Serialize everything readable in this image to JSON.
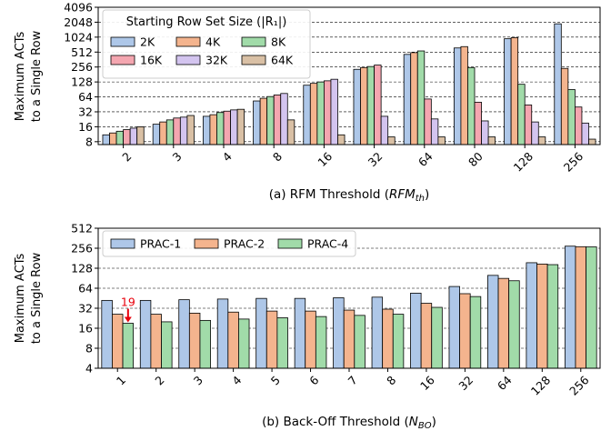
{
  "chart_data": [
    {
      "type": "bar",
      "caption": {
        "prefix": "(a) RFM Threshold (",
        "sym": "RFM",
        "sub": "th",
        "suffix": ")"
      },
      "ylabel_lines": [
        "Maximum ACTs",
        "to a Single Row"
      ],
      "yscale": "log2",
      "ylim": [
        7,
        4096
      ],
      "yticks": [
        8,
        16,
        32,
        64,
        128,
        256,
        512,
        1024,
        2048,
        4096
      ],
      "categories": [
        "2",
        "3",
        "4",
        "8",
        "16",
        "32",
        "64",
        "80",
        "128",
        "256"
      ],
      "legend": {
        "title": "Starting Row Set Size (|R₁|)",
        "position": "top-left",
        "columns": 3
      },
      "grid": "y-dashed",
      "series": [
        {
          "name": "2K",
          "color": "#aec7e8",
          "values": [
            11,
            18,
            26,
            53,
            110,
            230,
            460,
            620,
            950,
            1900
          ]
        },
        {
          "name": "4K",
          "color": "#f4b48e",
          "values": [
            12,
            20,
            28,
            60,
            120,
            250,
            500,
            660,
            1000,
            240
          ]
        },
        {
          "name": "8K",
          "color": "#a1dba9",
          "values": [
            13,
            22,
            31,
            65,
            128,
            262,
            540,
            250,
            115,
            90
          ]
        },
        {
          "name": "16K",
          "color": "#f4a6b0",
          "values": [
            14,
            24,
            33,
            70,
            135,
            280,
            58,
            50,
            44,
            40
          ]
        },
        {
          "name": "32K",
          "color": "#d3c4ef",
          "values": [
            15,
            25,
            35,
            75,
            145,
            26,
            23,
            21,
            20,
            19
          ]
        },
        {
          "name": "64K",
          "color": "#d9c0a5",
          "values": [
            16,
            27,
            36,
            22,
            11,
            10,
            10,
            10,
            10,
            9
          ]
        }
      ]
    },
    {
      "type": "bar",
      "caption": {
        "prefix": "(b) Back-Off Threshold (",
        "sym": "N",
        "sub": "BO",
        "suffix": ")"
      },
      "ylabel_lines": [
        "Maximum ACTs",
        "to a Single Row"
      ],
      "yscale": "log2",
      "ylim": [
        4,
        512
      ],
      "yticks": [
        4,
        8,
        16,
        32,
        64,
        128,
        256,
        512
      ],
      "categories": [
        "1",
        "2",
        "3",
        "4",
        "5",
        "6",
        "7",
        "8",
        "16",
        "32",
        "64",
        "128",
        "256"
      ],
      "legend": {
        "position": "top-left",
        "columns": 3
      },
      "grid": "y-dashed",
      "annotation": {
        "text": "19",
        "category": "1",
        "series": "PRAC-4",
        "value": 19,
        "color": "#e8000b"
      },
      "series": [
        {
          "name": "PRAC-1",
          "color": "#aec7e8",
          "values": [
            42,
            42,
            43,
            44,
            45,
            45,
            46,
            47,
            54,
            68,
            100,
            155,
            275
          ]
        },
        {
          "name": "PRAC-2",
          "color": "#f4b48e",
          "values": [
            26,
            26,
            27,
            28,
            29,
            29,
            30,
            31,
            38,
            53,
            90,
            148,
            270
          ]
        },
        {
          "name": "PRAC-4",
          "color": "#a1dba9",
          "values": [
            19,
            20,
            21,
            22,
            23,
            24,
            25,
            26,
            33,
            48,
            83,
            145,
            268
          ]
        }
      ]
    }
  ]
}
